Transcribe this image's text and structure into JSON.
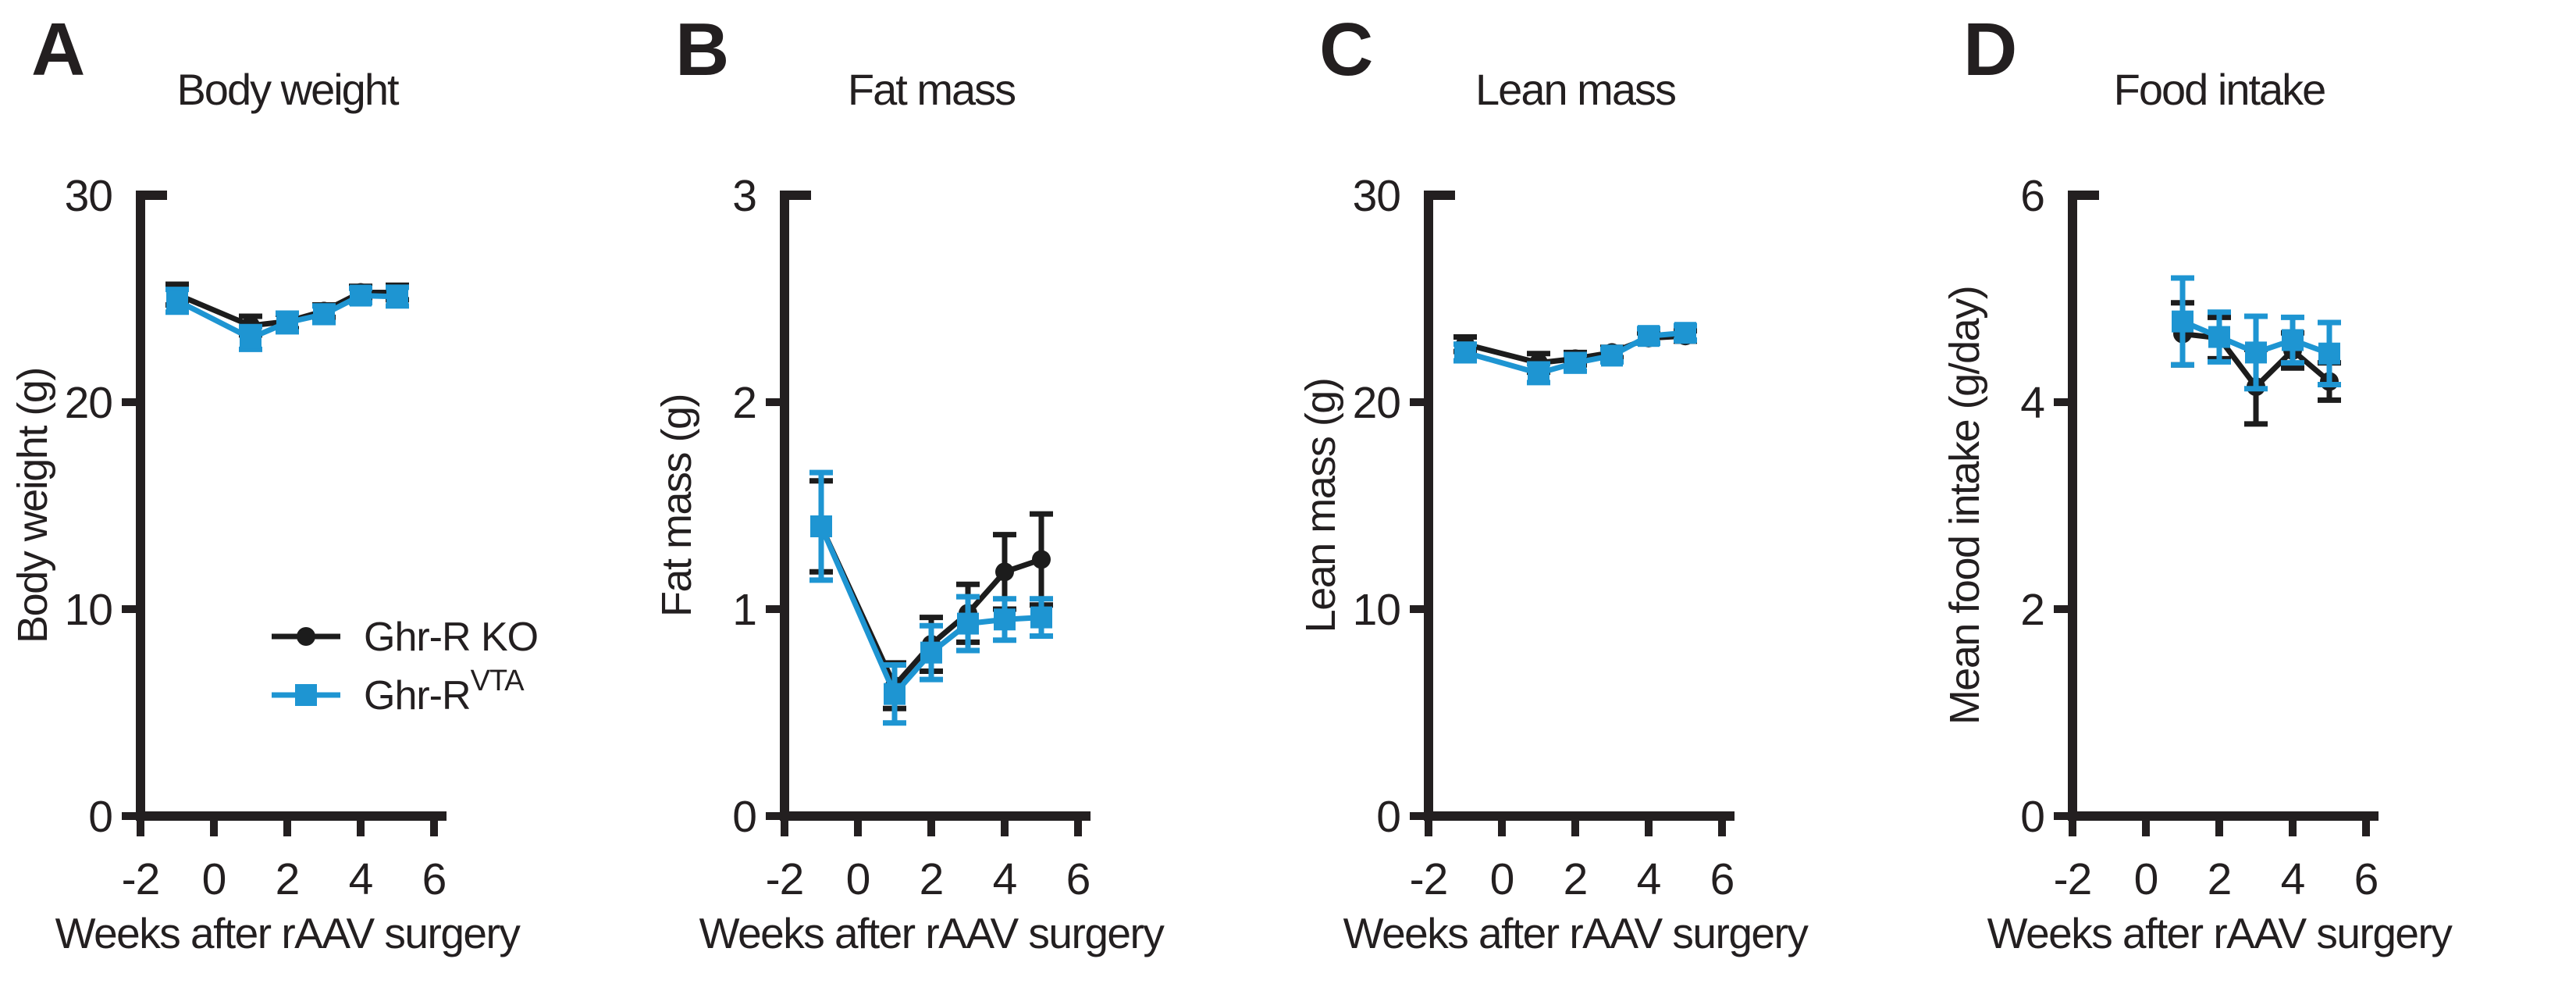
{
  "figure": {
    "background": "#FFFFFF",
    "axis_color": "#231F20",
    "series_blue": "#1E95D2",
    "series_black": "#1C1C1C",
    "x_axis_label": "Weeks after rAAV surgery",
    "legend": {
      "items": [
        {
          "label": "Ghr-R KO",
          "sup": "",
          "marker": "circle",
          "color": "#1C1C1C"
        },
        {
          "label": "Ghr-R",
          "sup": "VTA",
          "marker": "square",
          "color": "#1E95D2"
        }
      ]
    }
  },
  "chart_data": [
    {
      "type": "line",
      "panel_label": "A",
      "title": "Body weight",
      "ylabel": "Body weight (g)",
      "xlabel": "Weeks after rAAV surgery",
      "ylim": [
        0,
        30
      ],
      "yticks": [
        0,
        10,
        20,
        30
      ],
      "xlim": [
        -2,
        6
      ],
      "xticks": [
        -2,
        0,
        2,
        4,
        6
      ],
      "x": [
        -1,
        1,
        2,
        3,
        4,
        5
      ],
      "show_legend": true,
      "series": [
        {
          "name": "Ghr-R KO",
          "name_sup": "",
          "marker": "circle",
          "color": "#1C1C1C",
          "values": [
            25.2,
            23.7,
            23.9,
            24.4,
            25.3,
            25.3
          ],
          "errors": [
            0.5,
            0.45,
            0.35,
            0.3,
            0.3,
            0.35
          ]
        },
        {
          "name": "Ghr-R",
          "name_sup": "VTA",
          "marker": "square",
          "color": "#1E95D2",
          "values": [
            24.9,
            23.1,
            23.85,
            24.25,
            25.15,
            25.1
          ],
          "errors": [
            0.55,
            0.55,
            0.45,
            0.4,
            0.35,
            0.45
          ]
        }
      ]
    },
    {
      "type": "line",
      "panel_label": "B",
      "title": "Fat mass",
      "ylabel": "Fat mass (g)",
      "xlabel": "Weeks after rAAV surgery",
      "ylim": [
        0,
        3
      ],
      "yticks": [
        0,
        1,
        2,
        3
      ],
      "xlim": [
        -2,
        6
      ],
      "xticks": [
        -2,
        0,
        2,
        4,
        6
      ],
      "x": [
        -1,
        1,
        2,
        3,
        4,
        5
      ],
      "show_legend": false,
      "series": [
        {
          "name": "Ghr-R KO",
          "name_sup": "",
          "marker": "circle",
          "color": "#1C1C1C",
          "values": [
            1.4,
            0.63,
            0.83,
            0.98,
            1.18,
            1.24
          ],
          "errors": [
            0.22,
            0.11,
            0.13,
            0.14,
            0.18,
            0.22
          ]
        },
        {
          "name": "Ghr-R",
          "name_sup": "VTA",
          "marker": "square",
          "color": "#1E95D2",
          "values": [
            1.4,
            0.59,
            0.79,
            0.93,
            0.95,
            0.96
          ],
          "errors": [
            0.26,
            0.14,
            0.13,
            0.13,
            0.1,
            0.09
          ]
        }
      ]
    },
    {
      "type": "line",
      "panel_label": "C",
      "title": "Lean mass",
      "ylabel": "Lean mass (g)",
      "xlabel": "Weeks after rAAV surgery",
      "ylim": [
        0,
        30
      ],
      "yticks": [
        0,
        10,
        20,
        30
      ],
      "xlim": [
        -2,
        6
      ],
      "xticks": [
        -2,
        0,
        2,
        4,
        6
      ],
      "x": [
        -1,
        1,
        2,
        3,
        4,
        5
      ],
      "show_legend": false,
      "series": [
        {
          "name": "Ghr-R KO",
          "name_sup": "",
          "marker": "circle",
          "color": "#1C1C1C",
          "values": [
            22.8,
            21.9,
            22.1,
            22.4,
            23.1,
            23.2
          ],
          "errors": [
            0.35,
            0.45,
            0.3,
            0.25,
            0.25,
            0.25
          ]
        },
        {
          "name": "Ghr-R",
          "name_sup": "VTA",
          "marker": "square",
          "color": "#1E95D2",
          "values": [
            22.4,
            21.4,
            21.9,
            22.25,
            23.2,
            23.35
          ],
          "errors": [
            0.4,
            0.45,
            0.4,
            0.3,
            0.35,
            0.35
          ]
        }
      ]
    },
    {
      "type": "line",
      "panel_label": "D",
      "title": "Food intake",
      "ylabel": "Mean food intake (g/day)",
      "xlabel": "Weeks after rAAV surgery",
      "ylim": [
        0,
        6
      ],
      "yticks": [
        0,
        2,
        4,
        6
      ],
      "xlim": [
        -2,
        6
      ],
      "xticks": [
        -2,
        0,
        2,
        4,
        6
      ],
      "x": [
        1,
        2,
        3,
        4,
        5
      ],
      "show_legend": false,
      "series": [
        {
          "name": "Ghr-R KO",
          "name_sup": "",
          "marker": "circle",
          "color": "#1C1C1C",
          "values": [
            4.66,
            4.62,
            4.15,
            4.5,
            4.2
          ],
          "errors": [
            0.3,
            0.2,
            0.36,
            0.17,
            0.18
          ]
        },
        {
          "name": "Ghr-R",
          "name_sup": "VTA",
          "marker": "square",
          "color": "#1E95D2",
          "values": [
            4.78,
            4.63,
            4.48,
            4.6,
            4.47
          ],
          "errors": [
            0.42,
            0.24,
            0.35,
            0.22,
            0.3
          ]
        }
      ]
    }
  ]
}
